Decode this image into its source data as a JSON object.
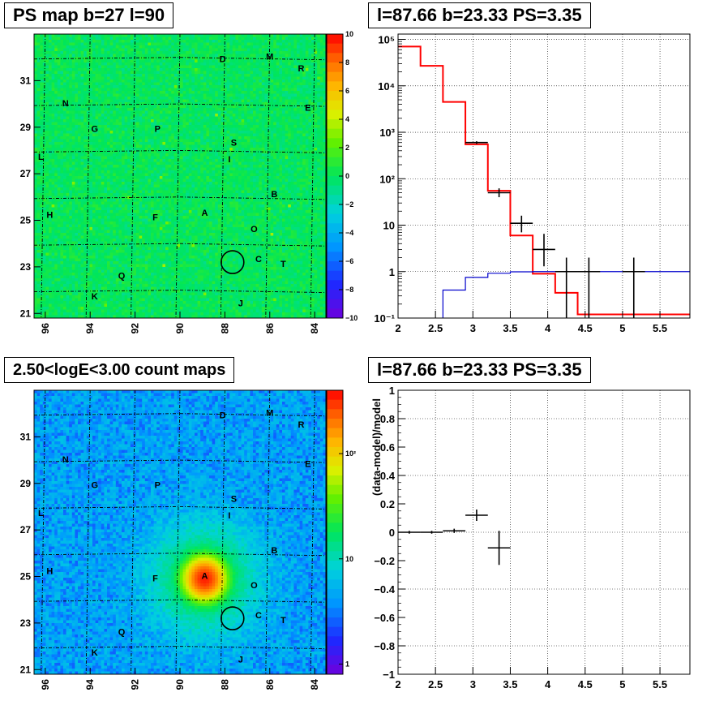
{
  "chart_data": [
    {
      "id": "ps-map",
      "type": "heatmap",
      "title": "PS map b=27 l=90",
      "xlim": [
        96.5,
        83.5
      ],
      "ylim": [
        20.8,
        33.0
      ],
      "x_ticks": [
        {
          "v": 96,
          "label": "96"
        },
        {
          "v": 94,
          "label": "94"
        },
        {
          "v": 92,
          "label": "92"
        },
        {
          "v": 90,
          "label": "90"
        },
        {
          "v": 88,
          "label": "88"
        },
        {
          "v": 86,
          "label": "86"
        },
        {
          "v": 84,
          "label": "84"
        }
      ],
      "y_ticks": [
        {
          "v": 21,
          "label": "21"
        },
        {
          "v": 23,
          "label": "23"
        },
        {
          "v": 25,
          "label": "25"
        },
        {
          "v": 27,
          "label": "27"
        },
        {
          "v": 29,
          "label": "29"
        },
        {
          "v": 31,
          "label": "31"
        }
      ],
      "colorbar": {
        "scale": "linear",
        "min": -10,
        "max": 10,
        "ticks": [
          {
            "v": 10,
            "label": "10"
          },
          {
            "v": 8,
            "label": "8"
          },
          {
            "v": 6,
            "label": "6"
          },
          {
            "v": 4,
            "label": "4"
          },
          {
            "v": 2,
            "label": "2"
          },
          {
            "v": 0,
            "label": "0"
          },
          {
            "v": -2,
            "label": "−2"
          },
          {
            "v": -4,
            "label": "−4"
          },
          {
            "v": -6,
            "label": "−6"
          },
          {
            "v": -8,
            "label": "−8"
          },
          {
            "v": -10,
            "label": "−10"
          }
        ]
      },
      "circle": {
        "l": 87.66,
        "b": 23.2
      },
      "labels": [
        {
          "text": "D",
          "l": 88.1,
          "b": 31.9
        },
        {
          "text": "M",
          "l": 86.0,
          "b": 32.0
        },
        {
          "text": "R",
          "l": 84.6,
          "b": 31.5
        },
        {
          "text": "N",
          "l": 95.1,
          "b": 30.0
        },
        {
          "text": "E",
          "l": 84.3,
          "b": 29.8
        },
        {
          "text": "G",
          "l": 93.8,
          "b": 28.9
        },
        {
          "text": "P",
          "l": 91.0,
          "b": 28.9
        },
        {
          "text": "S",
          "l": 87.6,
          "b": 28.3
        },
        {
          "text": "L",
          "l": 96.2,
          "b": 27.7
        },
        {
          "text": "I",
          "l": 87.8,
          "b": 27.6
        },
        {
          "text": "B",
          "l": 85.8,
          "b": 26.1
        },
        {
          "text": "H",
          "l": 95.8,
          "b": 25.2
        },
        {
          "text": "A",
          "l": 88.9,
          "b": 25.3
        },
        {
          "text": "F",
          "l": 91.1,
          "b": 25.1
        },
        {
          "text": "O",
          "l": 86.7,
          "b": 24.6
        },
        {
          "text": "C",
          "l": 86.5,
          "b": 23.3
        },
        {
          "text": "T",
          "l": 85.4,
          "b": 23.1
        },
        {
          "text": "Q",
          "l": 92.6,
          "b": 22.6
        },
        {
          "text": "K",
          "l": 93.8,
          "b": 21.7
        },
        {
          "text": "J",
          "l": 87.3,
          "b": 21.4
        }
      ]
    },
    {
      "id": "spectrum",
      "type": "line",
      "title": "l=87.66 b=23.33 PS=3.35",
      "xlim": [
        2.0,
        5.9
      ],
      "yscale": "log",
      "ylim": [
        0.1,
        130000
      ],
      "grid": true,
      "x_ticks": [
        {
          "v": 2,
          "label": "2"
        },
        {
          "v": 2.5,
          "label": "2.5"
        },
        {
          "v": 3,
          "label": "3"
        },
        {
          "v": 3.5,
          "label": "3.5"
        },
        {
          "v": 4,
          "label": "4"
        },
        {
          "v": 4.5,
          "label": "4.5"
        },
        {
          "v": 5,
          "label": "5"
        },
        {
          "v": 5.5,
          "label": "5.5"
        }
      ],
      "y_ticks": [
        {
          "v": 0.1,
          "label": "10⁻¹"
        },
        {
          "v": 1,
          "label": "1"
        },
        {
          "v": 10,
          "label": "10"
        },
        {
          "v": 100,
          "label": "10²"
        },
        {
          "v": 1000,
          "label": "10³"
        },
        {
          "v": 10000,
          "label": "10⁴"
        },
        {
          "v": 100000,
          "label": "10⁵"
        }
      ],
      "series": [
        {
          "role": "model",
          "color": "#ff0000",
          "bin_edges": [
            2.0,
            2.3,
            2.6,
            2.9,
            3.2,
            3.5,
            3.8,
            4.1,
            4.4,
            5.9
          ],
          "values": [
            70000,
            27000,
            4500,
            550,
            55,
            6,
            0.9,
            0.35,
            0.12
          ]
        },
        {
          "role": "background",
          "color": "#0000cc",
          "bin_edges": [
            2.0,
            2.3,
            2.6,
            2.9,
            3.2,
            3.5,
            3.8,
            5.9
          ],
          "values": [
            0.02,
            0.05,
            0.4,
            0.75,
            0.92,
            0.99,
            1.0
          ]
        },
        {
          "role": "data",
          "color": "#000000",
          "points": [
            {
              "x": 3.05,
              "y": 600,
              "xerr": 0.15,
              "ylo": 560,
              "yhi": 640
            },
            {
              "x": 3.35,
              "y": 50,
              "xerr": 0.15,
              "ylo": 40,
              "yhi": 62
            },
            {
              "x": 3.65,
              "y": 11,
              "xerr": 0.15,
              "ylo": 7,
              "yhi": 16
            },
            {
              "x": 3.95,
              "y": 3,
              "xerr": 0.15,
              "ylo": 1.3,
              "yhi": 6.5
            },
            {
              "x": 4.25,
              "y": 1,
              "xerr": 0.15,
              "ylo": 0.1,
              "yhi": 2
            },
            {
              "x": 4.55,
              "y": 1,
              "xerr": 0.15,
              "ylo": 0.1,
              "yhi": 2
            },
            {
              "x": 5.15,
              "y": 1,
              "xerr": 0.15,
              "ylo": 0.1,
              "yhi": 2
            }
          ]
        }
      ]
    },
    {
      "id": "count-map",
      "type": "heatmap",
      "title": "2.50<logE<3.00 count maps",
      "xlim": [
        96.5,
        83.5
      ],
      "ylim": [
        20.8,
        33.0
      ],
      "x_ticks": [
        {
          "v": 96,
          "label": "96"
        },
        {
          "v": 94,
          "label": "94"
        },
        {
          "v": 92,
          "label": "92"
        },
        {
          "v": 90,
          "label": "90"
        },
        {
          "v": 88,
          "label": "88"
        },
        {
          "v": 86,
          "label": "86"
        },
        {
          "v": 84,
          "label": "84"
        }
      ],
      "y_ticks": [
        {
          "v": 21,
          "label": "21"
        },
        {
          "v": 23,
          "label": "23"
        },
        {
          "v": 25,
          "label": "25"
        },
        {
          "v": 27,
          "label": "27"
        },
        {
          "v": 29,
          "label": "29"
        },
        {
          "v": 31,
          "label": "31"
        }
      ],
      "colorbar": {
        "scale": "log",
        "min": 0.8,
        "max": 400,
        "ticks": [
          {
            "v": 100,
            "label": "10²"
          },
          {
            "v": 10,
            "label": "10"
          },
          {
            "v": 1,
            "label": "1"
          }
        ]
      },
      "hotspot": {
        "l": 88.9,
        "b": 24.9
      },
      "circle": {
        "l": 87.66,
        "b": 23.2
      },
      "labels": [
        {
          "text": "D",
          "l": 88.1,
          "b": 31.9
        },
        {
          "text": "M",
          "l": 86.0,
          "b": 32.0
        },
        {
          "text": "R",
          "l": 84.6,
          "b": 31.5
        },
        {
          "text": "N",
          "l": 95.1,
          "b": 30.0
        },
        {
          "text": "E",
          "l": 84.3,
          "b": 29.8
        },
        {
          "text": "G",
          "l": 93.8,
          "b": 28.9
        },
        {
          "text": "P",
          "l": 91.0,
          "b": 28.9
        },
        {
          "text": "S",
          "l": 87.6,
          "b": 28.3
        },
        {
          "text": "L",
          "l": 96.2,
          "b": 27.7
        },
        {
          "text": "I",
          "l": 87.8,
          "b": 27.6
        },
        {
          "text": "B",
          "l": 85.8,
          "b": 26.1
        },
        {
          "text": "H",
          "l": 95.8,
          "b": 25.2
        },
        {
          "text": "A",
          "l": 88.9,
          "b": 25.0
        },
        {
          "text": "F",
          "l": 91.1,
          "b": 24.9
        },
        {
          "text": "O",
          "l": 86.7,
          "b": 24.6
        },
        {
          "text": "C",
          "l": 86.5,
          "b": 23.3
        },
        {
          "text": "T",
          "l": 85.4,
          "b": 23.1
        },
        {
          "text": "Q",
          "l": 92.6,
          "b": 22.6
        },
        {
          "text": "K",
          "l": 93.8,
          "b": 21.7
        },
        {
          "text": "J",
          "l": 87.3,
          "b": 21.4
        }
      ]
    },
    {
      "id": "residual",
      "type": "scatter",
      "title": "l=87.66 b=23.33 PS=3.35",
      "ylabel": "(data-model)/model",
      "xlim": [
        2.0,
        5.9
      ],
      "ylim": [
        -1.0,
        1.0
      ],
      "grid": true,
      "x_ticks": [
        {
          "v": 2,
          "label": "2"
        },
        {
          "v": 2.5,
          "label": "2.5"
        },
        {
          "v": 3,
          "label": "3"
        },
        {
          "v": 3.5,
          "label": "3.5"
        },
        {
          "v": 4,
          "label": "4"
        },
        {
          "v": 4.5,
          "label": "4.5"
        },
        {
          "v": 5,
          "label": "5"
        },
        {
          "v": 5.5,
          "label": "5.5"
        }
      ],
      "y_ticks": [
        {
          "v": 1,
          "label": "1"
        },
        {
          "v": 0.8,
          "label": "0.8"
        },
        {
          "v": 0.6,
          "label": "0.6"
        },
        {
          "v": 0.4,
          "label": "0.4"
        },
        {
          "v": 0.2,
          "label": "0.2"
        },
        {
          "v": 0,
          "label": "0"
        },
        {
          "v": -0.2,
          "label": "−0.2"
        },
        {
          "v": -0.4,
          "label": "−0.4"
        },
        {
          "v": -0.6,
          "label": "−0.6"
        },
        {
          "v": -0.8,
          "label": "−0.8"
        },
        {
          "v": -1,
          "label": "−1"
        }
      ],
      "series": [
        {
          "role": "data",
          "color": "#000000",
          "points": [
            {
              "x": 2.15,
              "y": 0.0,
              "xerr": 0.15,
              "yerr": 0.01
            },
            {
              "x": 2.45,
              "y": 0.0,
              "xerr": 0.15,
              "yerr": 0.01
            },
            {
              "x": 2.75,
              "y": 0.01,
              "xerr": 0.15,
              "yerr": 0.015
            },
            {
              "x": 3.05,
              "y": 0.12,
              "xerr": 0.15,
              "yerr": 0.04
            },
            {
              "x": 3.35,
              "y": -0.11,
              "xerr": 0.15,
              "yerr": 0.12
            }
          ]
        }
      ]
    }
  ]
}
